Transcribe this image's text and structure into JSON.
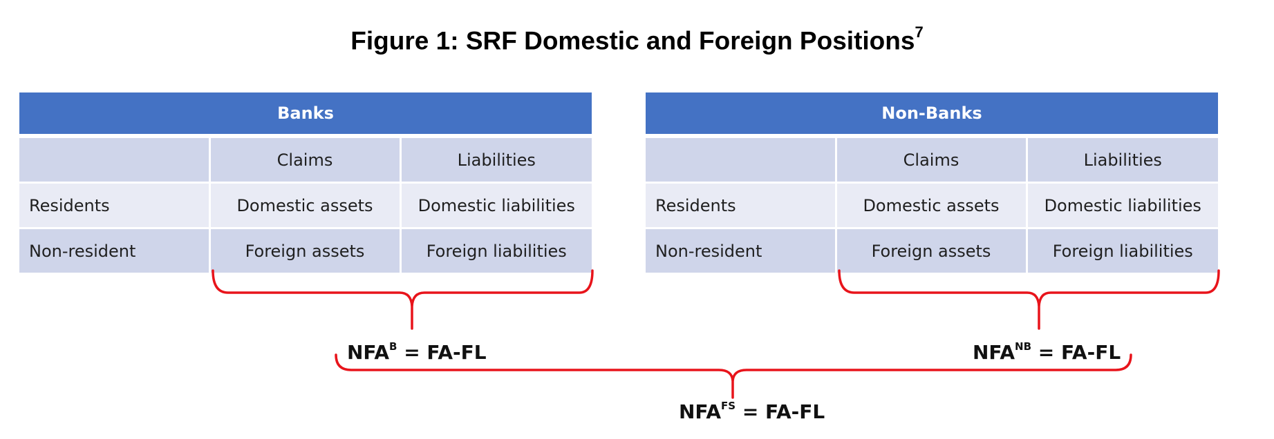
{
  "title": "Figure 1: SRF Domestic and Foreign Positions",
  "title_footnote": "7",
  "bracket_color": "#e8141b",
  "header_color": "#4472c4",
  "tables": [
    {
      "name": "Banks",
      "columns": [
        "",
        "Claims",
        "Liabilities"
      ],
      "rows": [
        [
          "Residents",
          "Domestic assets",
          "Domestic liabilities"
        ],
        [
          "Non-resident",
          "Foreign assets",
          "Foreign liabilities"
        ]
      ]
    },
    {
      "name": "Non-Banks",
      "columns": [
        "",
        "Claims",
        "Liabilities"
      ],
      "rows": [
        [
          "Residents",
          "Domestic assets",
          "Domestic liabilities"
        ],
        [
          "Non-resident",
          "Foreign assets",
          "Foreign liabilities"
        ]
      ]
    }
  ],
  "formulas": {
    "banks": {
      "base": "NFA",
      "sup": "B",
      "rhs": " = FA-FL"
    },
    "nonbanks": {
      "base": "NFA",
      "sup": "NB",
      "rhs": " = FA-FL"
    },
    "financial_system": {
      "base": "NFA",
      "sup": "FS",
      "rhs": " = FA-FL"
    }
  }
}
